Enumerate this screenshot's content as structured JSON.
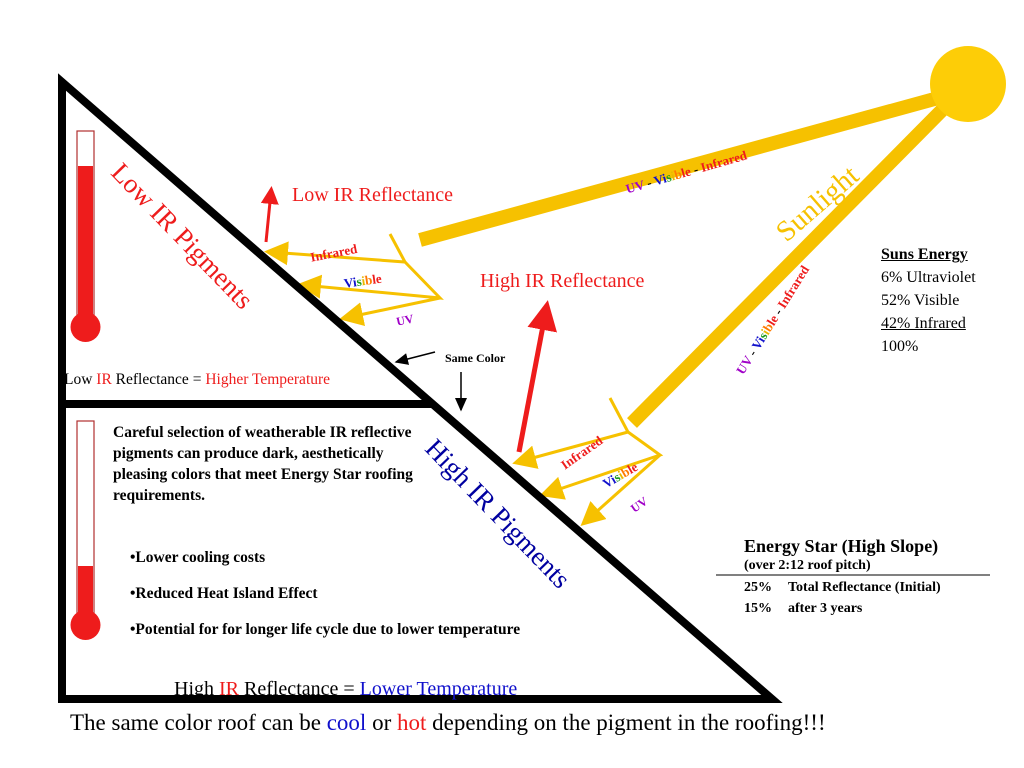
{
  "colors": {
    "sun": "#fdcd07",
    "beam": "#f6c100",
    "red": "#ee1c1c",
    "blue": "#1010cc",
    "purple": "#a000c8",
    "black": "#000000",
    "spectrum_letters": [
      "#1010cc",
      "#1010cc",
      "#1a9a1a",
      "#e8b800",
      "#ff7a00",
      "#ee1c1c",
      "#ee1c1c"
    ]
  },
  "labels": {
    "sunlight": "Sunlight",
    "low_ir_reflectance": "Low IR Reflectance",
    "high_ir_reflectance": "High IR Reflectance",
    "low_ir_pigments": "Low IR Pigments",
    "high_ir_pigments": "High IR Pigments",
    "same_color": "Same Color",
    "infrared": "Infrared",
    "visible": "Visible",
    "uv": "UV",
    "beam_top": {
      "uv": "UV",
      "dash1": " - ",
      "visible": "Visible",
      "dash2": " - ",
      "infrared": "Infrared"
    },
    "beam_right": {
      "uv": "UV",
      "dash1": " - ",
      "visible": "Visible",
      "dash2": " - ",
      "infrared": "Infrared"
    }
  },
  "low_equation": {
    "prefix": "Low ",
    "ir": "IR",
    "middle": " Reflectance = ",
    "result": "Higher Temperature"
  },
  "high_equation": {
    "prefix": "High ",
    "ir": "IR",
    "middle": " Reflectance = ",
    "result": "Lower Temperature"
  },
  "description": "Careful selection of weatherable IR reflective pigments can produce dark, aesthetically pleasing colors that meet Energy Star roofing requirements.",
  "bullets": [
    "•Lower cooling costs",
    "•Reduced Heat Island Effect",
    "•Potential for for longer life cycle due to lower temperature"
  ],
  "suns_energy": {
    "title": "Suns Energy",
    "rows": [
      "6% Ultraviolet",
      "52% Visible",
      "42% Infrared",
      "100%"
    ]
  },
  "energy_star": {
    "title": "Energy Star (High Slope)",
    "subtitle": "(over 2:12 roof pitch)",
    "rows": [
      {
        "value": "25%",
        "label": "Total Reflectance (Initial)"
      },
      {
        "value": "15%",
        "label": "after 3 years"
      }
    ]
  },
  "footer": {
    "part1": "The same color roof can be ",
    "cool": "cool",
    "part2": " or ",
    "hot": "hot",
    "part3": " depending on the pigment in the roofing!!!"
  }
}
